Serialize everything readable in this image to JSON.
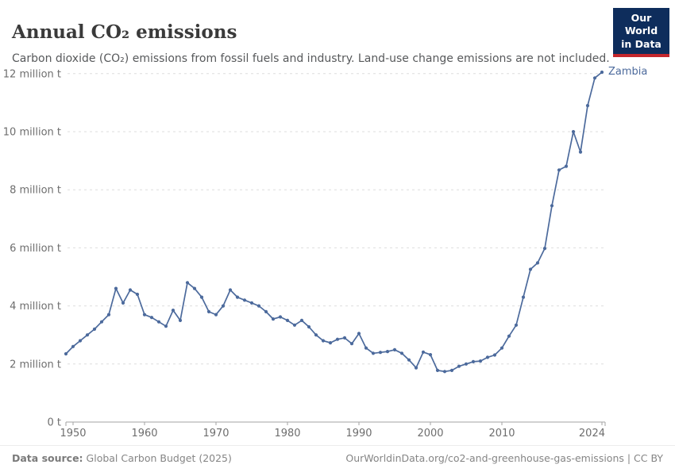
{
  "header": {
    "title": "Annual CO₂ emissions",
    "subtitle": "Carbon dioxide (CO₂) emissions from fossil fuels and industry. Land-use change emissions are not included.",
    "logo_line1": "Our World",
    "logo_line2": "in Data"
  },
  "chart_data": {
    "type": "line",
    "title": "Annual CO₂ emissions",
    "unit": "million t",
    "entity": "Zambia",
    "xlim": [
      1949,
      2024
    ],
    "ylim": [
      0,
      12
    ],
    "grid": true,
    "legend_position": "end-of-line-label",
    "colors": {
      "line": "#4c6a9c",
      "grid": "#dddddd",
      "axis": "#a3a3a3",
      "tick_label": "#6e6e6e"
    },
    "yticks": [
      {
        "v": 0,
        "label": "0 t"
      },
      {
        "v": 2,
        "label": "2 million t"
      },
      {
        "v": 4,
        "label": "4 million t"
      },
      {
        "v": 6,
        "label": "6 million t"
      },
      {
        "v": 8,
        "label": "8 million t"
      },
      {
        "v": 10,
        "label": "10 million t"
      },
      {
        "v": 12,
        "label": "12 million t"
      }
    ],
    "xticks": [
      {
        "v": 1950,
        "label": "1950"
      },
      {
        "v": 1960,
        "label": "1960"
      },
      {
        "v": 1970,
        "label": "1970"
      },
      {
        "v": 1980,
        "label": "1980"
      },
      {
        "v": 1990,
        "label": "1990"
      },
      {
        "v": 2000,
        "label": "2000"
      },
      {
        "v": 2010,
        "label": "2010"
      },
      {
        "v": 2024,
        "label": "2024"
      }
    ],
    "series": [
      {
        "name": "Zambia",
        "color": "#4c6a9c",
        "x": [
          1949,
          1950,
          1951,
          1952,
          1953,
          1954,
          1955,
          1956,
          1957,
          1958,
          1959,
          1960,
          1961,
          1962,
          1963,
          1964,
          1965,
          1966,
          1967,
          1968,
          1969,
          1970,
          1971,
          1972,
          1973,
          1974,
          1975,
          1976,
          1977,
          1978,
          1979,
          1980,
          1981,
          1982,
          1983,
          1984,
          1985,
          1986,
          1987,
          1988,
          1989,
          1990,
          1991,
          1992,
          1993,
          1994,
          1995,
          1996,
          1997,
          1998,
          1999,
          2000,
          2001,
          2002,
          2003,
          2004,
          2005,
          2006,
          2007,
          2008,
          2009,
          2010,
          2011,
          2012,
          2013,
          2014,
          2015,
          2016,
          2017,
          2018,
          2019,
          2020,
          2021,
          2022,
          2023,
          2024
        ],
        "values": [
          2.35,
          2.6,
          2.8,
          3.0,
          3.2,
          3.45,
          3.7,
          4.6,
          4.1,
          4.55,
          4.4,
          3.7,
          3.6,
          3.45,
          3.3,
          3.85,
          3.5,
          4.8,
          4.6,
          4.3,
          3.8,
          3.7,
          4.0,
          4.55,
          4.3,
          4.2,
          4.1,
          4.0,
          3.8,
          3.55,
          3.62,
          3.5,
          3.34,
          3.5,
          3.28,
          3.0,
          2.8,
          2.73,
          2.85,
          2.9,
          2.7,
          3.05,
          2.55,
          2.37,
          2.4,
          2.43,
          2.49,
          2.37,
          2.14,
          1.87,
          2.41,
          2.32,
          1.78,
          1.74,
          1.78,
          1.92,
          2.0,
          2.08,
          2.1,
          2.23,
          2.31,
          2.55,
          2.96,
          3.34,
          4.3,
          5.26,
          5.48,
          5.98,
          7.45,
          8.68,
          8.81,
          10.0,
          9.3,
          10.9,
          11.85,
          12.05
        ]
      }
    ]
  },
  "footer": {
    "source_label": "Data source:",
    "source_text": " Global Carbon Budget (2025)",
    "link_text": "OurWorldinData.org/co2-and-greenhouse-gas-emissions | CC BY"
  }
}
